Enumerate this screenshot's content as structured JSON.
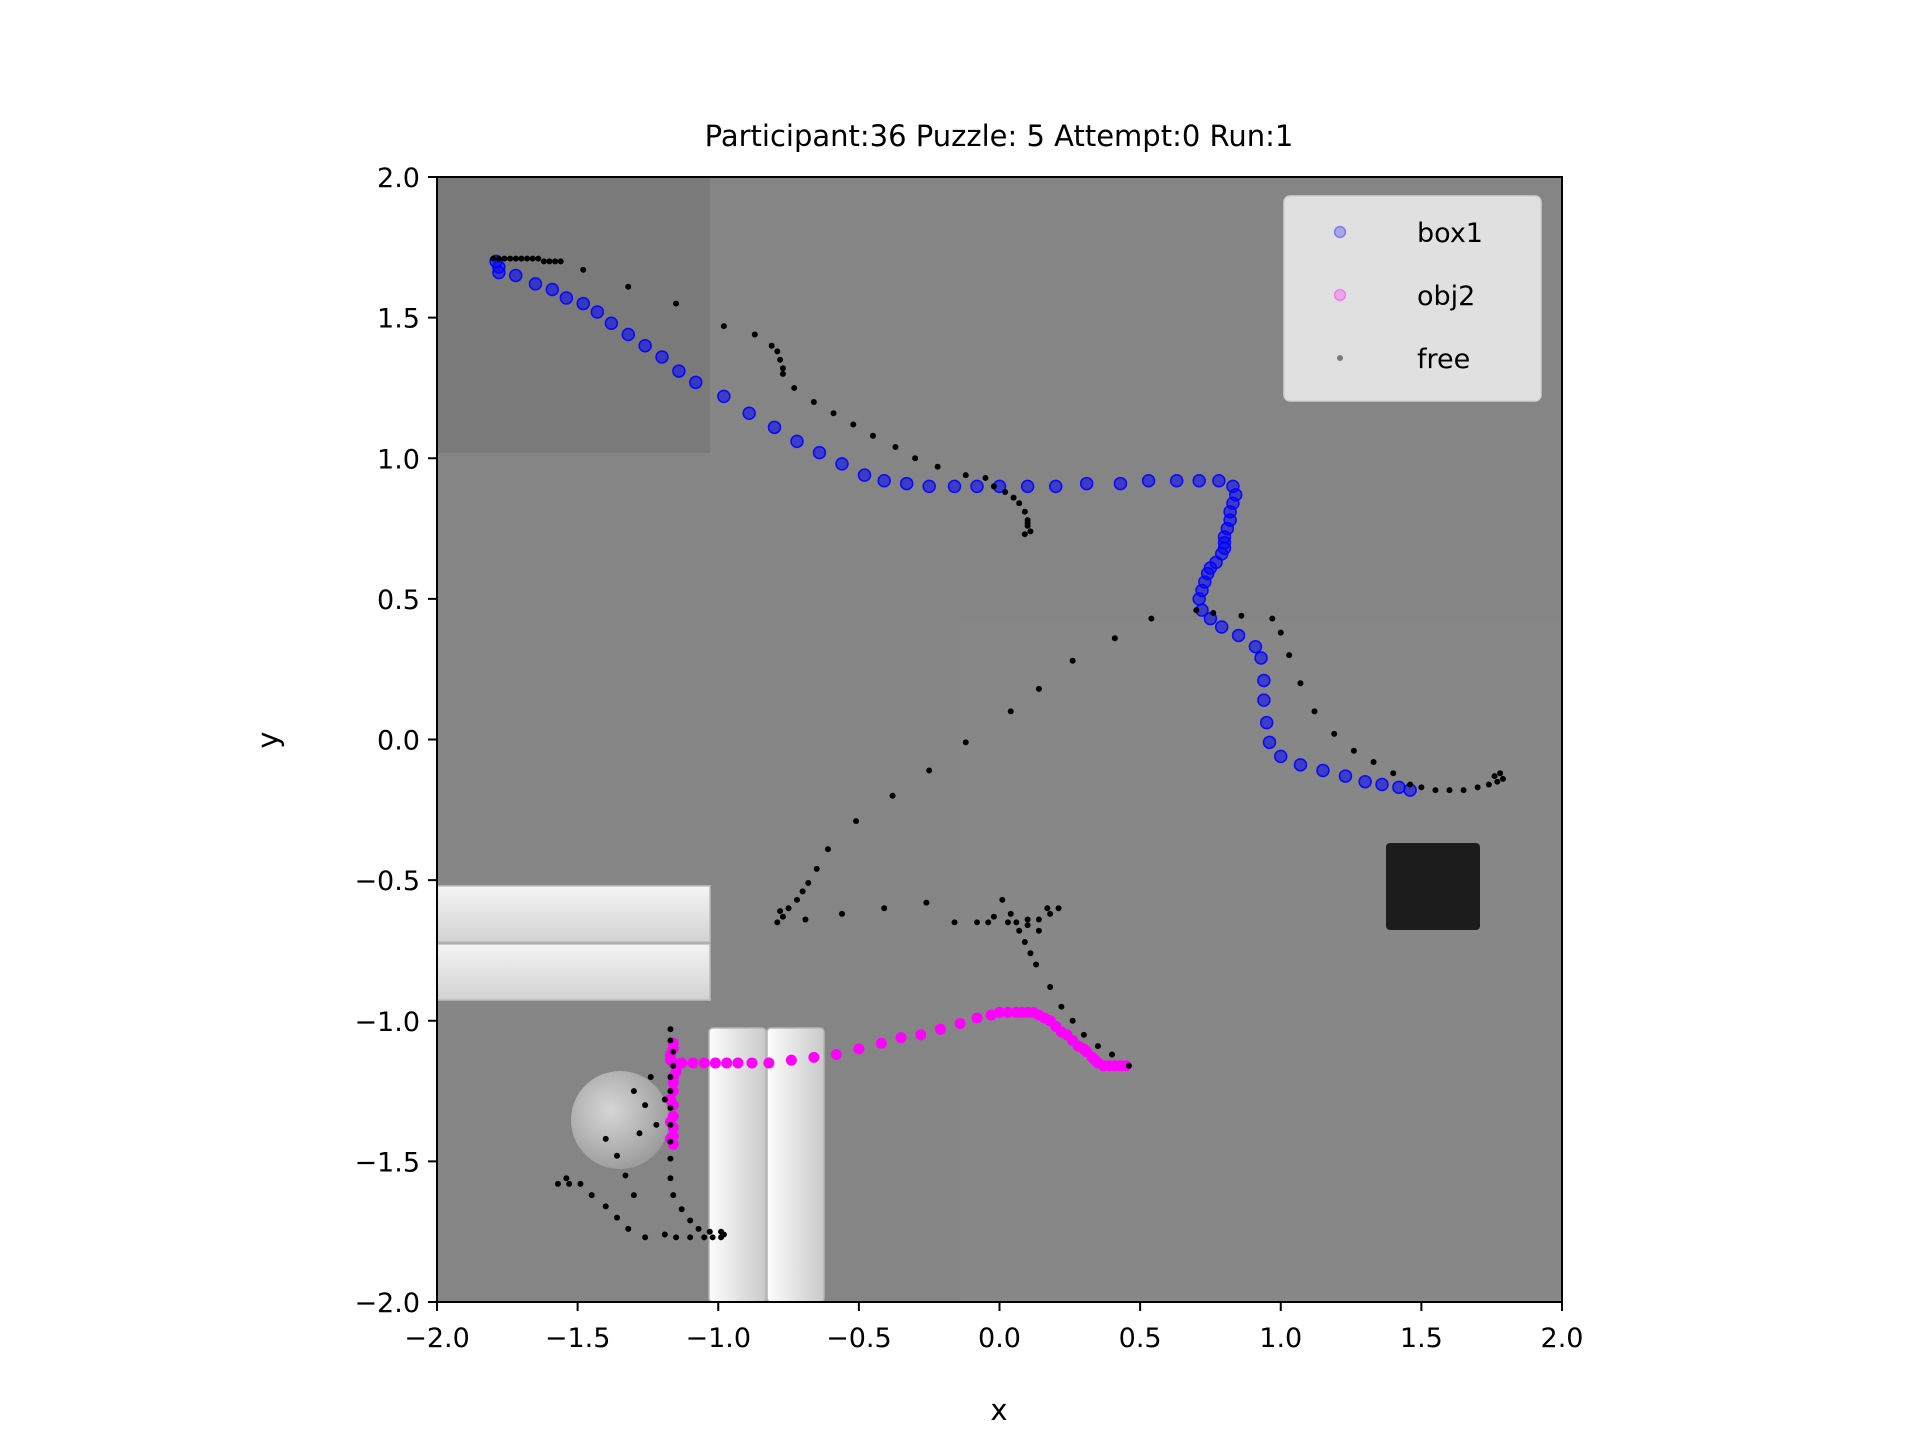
{
  "chart_data": {
    "type": "scatter",
    "title": "Participant:36 Puzzle: 5 Attempt:0 Run:1",
    "xlabel": "x",
    "ylabel": "y",
    "xlim": [
      -2.0,
      2.0
    ],
    "ylim": [
      -2.0,
      2.0
    ],
    "x_ticks": [
      -2.0,
      -1.5,
      -1.0,
      -0.5,
      0.0,
      0.5,
      1.0,
      1.5,
      2.0
    ],
    "x_tick_labels": [
      "−2.0",
      "−1.5",
      "−1.0",
      "−0.5",
      "0.0",
      "0.5",
      "1.0",
      "1.5",
      "2.0"
    ],
    "y_ticks": [
      2.0,
      1.5,
      1.0,
      0.5,
      0.0,
      -0.5,
      -1.0,
      -1.5,
      -2.0
    ],
    "y_tick_labels": [
      "2.0",
      "1.5",
      "1.0",
      "0.5",
      "0.0",
      "−0.5",
      "−1.0",
      "−1.5",
      "−2.0"
    ],
    "legend_position": "top-right",
    "grid": false,
    "background": "grayscale top-down scene image of the puzzle workspace",
    "series": [
      {
        "name": "box1",
        "color": "#0000ff",
        "marker": "circle",
        "points": [
          [
            -1.79,
            1.7
          ],
          [
            -1.78,
            1.68
          ],
          [
            -1.78,
            1.66
          ],
          [
            -1.72,
            1.65
          ],
          [
            -1.65,
            1.62
          ],
          [
            -1.59,
            1.6
          ],
          [
            -1.54,
            1.57
          ],
          [
            -1.48,
            1.55
          ],
          [
            -1.43,
            1.52
          ],
          [
            -1.38,
            1.48
          ],
          [
            -1.32,
            1.44
          ],
          [
            -1.26,
            1.4
          ],
          [
            -1.2,
            1.36
          ],
          [
            -1.14,
            1.31
          ],
          [
            -1.08,
            1.27
          ],
          [
            -0.98,
            1.22
          ],
          [
            -0.89,
            1.16
          ],
          [
            -0.8,
            1.11
          ],
          [
            -0.72,
            1.06
          ],
          [
            -0.64,
            1.02
          ],
          [
            -0.56,
            0.98
          ],
          [
            -0.48,
            0.94
          ],
          [
            -0.41,
            0.92
          ],
          [
            -0.33,
            0.91
          ],
          [
            -0.25,
            0.9
          ],
          [
            -0.16,
            0.9
          ],
          [
            -0.08,
            0.9
          ],
          [
            0.0,
            0.9
          ],
          [
            0.1,
            0.9
          ],
          [
            0.2,
            0.9
          ],
          [
            0.31,
            0.91
          ],
          [
            0.43,
            0.91
          ],
          [
            0.53,
            0.92
          ],
          [
            0.63,
            0.92
          ],
          [
            0.71,
            0.92
          ],
          [
            0.78,
            0.92
          ],
          [
            0.83,
            0.9
          ],
          [
            0.84,
            0.87
          ],
          [
            0.83,
            0.84
          ],
          [
            0.82,
            0.81
          ],
          [
            0.82,
            0.78
          ],
          [
            0.81,
            0.75
          ],
          [
            0.8,
            0.72
          ],
          [
            0.8,
            0.7
          ],
          [
            0.8,
            0.68
          ],
          [
            0.79,
            0.66
          ],
          [
            0.77,
            0.63
          ],
          [
            0.75,
            0.61
          ],
          [
            0.74,
            0.59
          ],
          [
            0.73,
            0.56
          ],
          [
            0.72,
            0.53
          ],
          [
            0.71,
            0.5
          ],
          [
            0.72,
            0.46
          ],
          [
            0.75,
            0.43
          ],
          [
            0.79,
            0.4
          ],
          [
            0.85,
            0.37
          ],
          [
            0.91,
            0.33
          ],
          [
            0.93,
            0.29
          ],
          [
            0.94,
            0.21
          ],
          [
            0.94,
            0.14
          ],
          [
            0.95,
            0.06
          ],
          [
            0.96,
            -0.01
          ],
          [
            1.0,
            -0.06
          ],
          [
            1.07,
            -0.09
          ],
          [
            1.15,
            -0.11
          ],
          [
            1.23,
            -0.13
          ],
          [
            1.3,
            -0.15
          ],
          [
            1.36,
            -0.16
          ],
          [
            1.42,
            -0.17
          ],
          [
            1.46,
            -0.18
          ]
        ]
      },
      {
        "name": "obj2",
        "color": "#ff00ff",
        "marker": "circle",
        "points": [
          [
            0.45,
            -1.16
          ],
          [
            0.43,
            -1.16
          ],
          [
            0.41,
            -1.16
          ],
          [
            0.39,
            -1.16
          ],
          [
            0.37,
            -1.16
          ],
          [
            0.35,
            -1.15
          ],
          [
            0.34,
            -1.14
          ],
          [
            0.33,
            -1.13
          ],
          [
            0.31,
            -1.11
          ],
          [
            0.3,
            -1.1
          ],
          [
            0.28,
            -1.09
          ],
          [
            0.26,
            -1.07
          ],
          [
            0.24,
            -1.05
          ],
          [
            0.22,
            -1.04
          ],
          [
            0.2,
            -1.02
          ],
          [
            0.18,
            -1.0
          ],
          [
            0.16,
            -0.99
          ],
          [
            0.14,
            -0.98
          ],
          [
            0.12,
            -0.97
          ],
          [
            0.1,
            -0.97
          ],
          [
            0.08,
            -0.97
          ],
          [
            0.06,
            -0.97
          ],
          [
            0.03,
            -0.97
          ],
          [
            0.0,
            -0.97
          ],
          [
            -0.03,
            -0.98
          ],
          [
            -0.08,
            -0.99
          ],
          [
            -0.14,
            -1.01
          ],
          [
            -0.21,
            -1.03
          ],
          [
            -0.28,
            -1.05
          ],
          [
            -0.35,
            -1.06
          ],
          [
            -0.42,
            -1.08
          ],
          [
            -0.5,
            -1.1
          ],
          [
            -0.58,
            -1.12
          ],
          [
            -0.66,
            -1.13
          ],
          [
            -0.74,
            -1.14
          ],
          [
            -0.82,
            -1.15
          ],
          [
            -0.88,
            -1.15
          ],
          [
            -0.93,
            -1.15
          ],
          [
            -0.97,
            -1.15
          ],
          [
            -1.01,
            -1.15
          ],
          [
            -1.05,
            -1.15
          ],
          [
            -1.09,
            -1.15
          ],
          [
            -1.13,
            -1.15
          ],
          [
            -1.16,
            -1.15
          ],
          [
            -1.17,
            -1.14
          ],
          [
            -1.17,
            -1.12
          ],
          [
            -1.16,
            -1.1
          ],
          [
            -1.16,
            -1.08
          ],
          [
            -1.16,
            -1.2
          ],
          [
            -1.16,
            -1.25
          ],
          [
            -1.16,
            -1.3
          ],
          [
            -1.16,
            -1.34
          ],
          [
            -1.16,
            -1.38
          ],
          [
            -1.16,
            -1.41
          ],
          [
            -1.16,
            -1.44
          ],
          [
            -1.17,
            -1.42
          ],
          [
            -1.17,
            -1.36
          ],
          [
            -1.17,
            -1.28
          ],
          [
            -1.16,
            -1.22
          ],
          [
            -1.15,
            -1.18
          ]
        ]
      },
      {
        "name": "free",
        "color": "#000000",
        "marker": "dot",
        "points": [
          [
            -1.8,
            1.71
          ],
          [
            -1.78,
            1.71
          ],
          [
            -1.76,
            1.71
          ],
          [
            -1.74,
            1.71
          ],
          [
            -1.72,
            1.71
          ],
          [
            -1.7,
            1.71
          ],
          [
            -1.68,
            1.71
          ],
          [
            -1.66,
            1.71
          ],
          [
            -1.64,
            1.71
          ],
          [
            -1.62,
            1.7
          ],
          [
            -1.6,
            1.7
          ],
          [
            -1.58,
            1.7
          ],
          [
            -1.56,
            1.7
          ],
          [
            -1.48,
            1.67
          ],
          [
            -1.32,
            1.61
          ],
          [
            -1.15,
            1.55
          ],
          [
            -0.98,
            1.47
          ],
          [
            -0.87,
            1.44
          ],
          [
            -0.81,
            1.4
          ],
          [
            -0.79,
            1.38
          ],
          [
            -0.78,
            1.35
          ],
          [
            -0.77,
            1.32
          ],
          [
            -0.77,
            1.3
          ],
          [
            -0.73,
            1.25
          ],
          [
            -0.66,
            1.2
          ],
          [
            -0.59,
            1.16
          ],
          [
            -0.52,
            1.12
          ],
          [
            -0.45,
            1.08
          ],
          [
            -0.37,
            1.04
          ],
          [
            -0.3,
            1.0
          ],
          [
            -0.22,
            0.97
          ],
          [
            -0.12,
            0.94
          ],
          [
            -0.05,
            0.93
          ],
          [
            -0.02,
            0.9
          ],
          [
            0.02,
            0.88
          ],
          [
            0.05,
            0.86
          ],
          [
            0.07,
            0.84
          ],
          [
            0.09,
            0.81
          ],
          [
            0.1,
            0.78
          ],
          [
            0.1,
            0.76
          ],
          [
            0.11,
            0.74
          ],
          [
            0.09,
            0.73
          ],
          [
            0.1,
            0.77
          ],
          [
            -1.19,
            -1.76
          ],
          [
            -1.15,
            -1.77
          ],
          [
            -1.1,
            -1.77
          ],
          [
            -1.05,
            -1.77
          ],
          [
            -1.02,
            -1.77
          ],
          [
            -0.99,
            -1.77
          ],
          [
            -0.98,
            -1.76
          ],
          [
            -0.99,
            -1.75
          ],
          [
            -1.03,
            -1.75
          ],
          [
            -1.07,
            -1.74
          ],
          [
            -1.1,
            -1.71
          ],
          [
            -1.13,
            -1.67
          ],
          [
            -1.16,
            -1.62
          ],
          [
            -1.17,
            -1.56
          ],
          [
            -1.17,
            -1.49
          ],
          [
            -1.17,
            -1.43
          ],
          [
            -1.17,
            -1.37
          ],
          [
            -1.17,
            -1.31
          ],
          [
            -1.17,
            -1.25
          ],
          [
            -1.17,
            -1.2
          ],
          [
            -1.16,
            -1.16
          ],
          [
            -1.16,
            -1.11
          ],
          [
            -1.17,
            -1.07
          ],
          [
            -1.17,
            -1.03
          ],
          [
            -1.26,
            -1.77
          ],
          [
            -1.32,
            -1.74
          ],
          [
            -1.36,
            -1.7
          ],
          [
            -1.4,
            -1.66
          ],
          [
            -1.45,
            -1.62
          ],
          [
            -1.49,
            -1.58
          ],
          [
            -1.54,
            -1.56
          ],
          [
            -1.57,
            -1.58
          ],
          [
            -1.53,
            -1.58
          ],
          [
            -1.3,
            -1.62
          ],
          [
            -1.33,
            -1.55
          ],
          [
            -1.36,
            -1.48
          ],
          [
            -1.4,
            -1.42
          ],
          [
            -1.28,
            -1.4
          ],
          [
            -1.22,
            -1.37
          ],
          [
            -1.26,
            -1.3
          ],
          [
            -1.3,
            -1.25
          ],
          [
            -1.24,
            -1.2
          ],
          [
            -1.19,
            -1.28
          ],
          [
            0.46,
            -1.16
          ],
          [
            0.4,
            -1.12
          ],
          [
            0.35,
            -1.09
          ],
          [
            0.3,
            -1.05
          ],
          [
            0.26,
            -1.0
          ],
          [
            0.22,
            -0.95
          ],
          [
            0.18,
            -0.88
          ],
          [
            0.13,
            -0.8
          ],
          [
            0.11,
            -0.76
          ],
          [
            0.09,
            -0.72
          ],
          [
            0.07,
            -0.68
          ],
          [
            0.06,
            -0.65
          ],
          [
            0.04,
            -0.62
          ],
          [
            0.01,
            -0.57
          ],
          [
            0.1,
            -0.64
          ],
          [
            0.14,
            -0.64
          ],
          [
            0.18,
            -0.62
          ],
          [
            0.21,
            -0.6
          ],
          [
            0.17,
            -0.6
          ],
          [
            0.03,
            -0.65
          ],
          [
            -0.04,
            -0.65
          ],
          [
            -0.08,
            -0.65
          ],
          [
            -0.16,
            -0.65
          ],
          [
            -0.79,
            -0.65
          ],
          [
            -0.77,
            -0.63
          ],
          [
            -0.75,
            -0.6
          ],
          [
            -0.72,
            -0.57
          ],
          [
            -0.7,
            -0.54
          ],
          [
            -0.68,
            -0.51
          ],
          [
            -0.65,
            -0.46
          ],
          [
            -0.61,
            -0.39
          ],
          [
            -0.51,
            -0.29
          ],
          [
            -0.38,
            -0.2
          ],
          [
            -0.25,
            -0.11
          ],
          [
            -0.12,
            -0.01
          ],
          [
            0.04,
            0.1
          ],
          [
            0.14,
            0.18
          ],
          [
            0.26,
            0.28
          ],
          [
            0.41,
            0.36
          ],
          [
            0.54,
            0.43
          ],
          [
            0.7,
            0.46
          ],
          [
            0.76,
            0.45
          ],
          [
            0.86,
            0.44
          ],
          [
            0.97,
            0.43
          ],
          [
            1.0,
            0.38
          ],
          [
            1.03,
            0.3
          ],
          [
            1.07,
            0.2
          ],
          [
            1.12,
            0.1
          ],
          [
            1.19,
            0.02
          ],
          [
            1.26,
            -0.04
          ],
          [
            1.33,
            -0.08
          ],
          [
            1.4,
            -0.12
          ],
          [
            1.46,
            -0.16
          ],
          [
            1.5,
            -0.17
          ],
          [
            1.55,
            -0.18
          ],
          [
            1.6,
            -0.18
          ],
          [
            1.65,
            -0.18
          ],
          [
            1.7,
            -0.17
          ],
          [
            1.74,
            -0.16
          ],
          [
            1.77,
            -0.15
          ],
          [
            1.79,
            -0.14
          ],
          [
            1.78,
            -0.12
          ],
          [
            1.76,
            -0.13
          ],
          [
            -0.69,
            -0.64
          ],
          [
            -0.56,
            -0.62
          ],
          [
            -0.41,
            -0.6
          ],
          [
            -0.26,
            -0.58
          ],
          [
            -0.02,
            -0.63
          ],
          [
            0.1,
            -0.66
          ],
          [
            0.14,
            -0.68
          ],
          [
            -0.78,
            -0.61
          ]
        ]
      }
    ]
  },
  "legend": {
    "items": [
      {
        "label": "box1",
        "color": "#0000ff"
      },
      {
        "label": "obj2",
        "color": "#ff00ff"
      },
      {
        "label": "free",
        "color": "#000000"
      }
    ]
  }
}
